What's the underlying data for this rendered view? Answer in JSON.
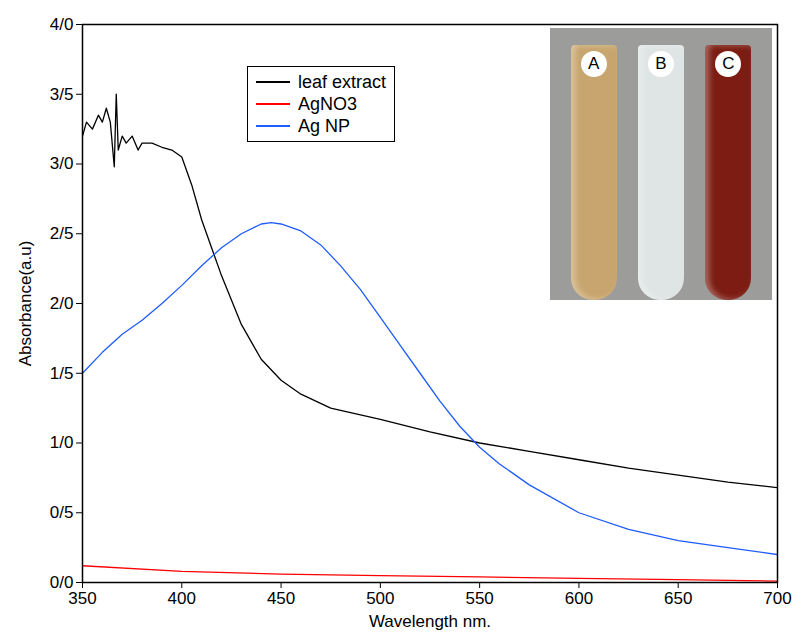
{
  "chart_data": {
    "type": "line",
    "x_label": "Wavelength nm.",
    "y_label": "Absorbance(a.u)",
    "xlim": [
      350,
      700
    ],
    "xticks": [
      350,
      400,
      450,
      500,
      550,
      600,
      650,
      700
    ],
    "ylim": [
      0,
      4
    ],
    "yticks": [
      {
        "value": 0,
        "label": "0/0"
      },
      {
        "value": 0.5,
        "label": "0/5"
      },
      {
        "value": 1,
        "label": "1/0"
      },
      {
        "value": 1.5,
        "label": "1/5"
      },
      {
        "value": 2,
        "label": "2/0"
      },
      {
        "value": 2.5,
        "label": "2/5"
      },
      {
        "value": 3,
        "label": "3/0"
      },
      {
        "value": 3.5,
        "label": "3/5"
      },
      {
        "value": 4,
        "label": "4/0"
      }
    ],
    "grid": false,
    "legend": "top",
    "series": [
      {
        "name": "leaf extract",
        "color": "#000000",
        "x": [
          350,
          352,
          355,
          358,
          360,
          362,
          364,
          366,
          367,
          368,
          370,
          372,
          375,
          378,
          380,
          385,
          390,
          395,
          400,
          405,
          410,
          415,
          420,
          430,
          440,
          450,
          460,
          475,
          500,
          525,
          550,
          575,
          600,
          625,
          650,
          675,
          700
        ],
        "values": [
          3.2,
          3.3,
          3.25,
          3.35,
          3.3,
          3.4,
          3.3,
          2.98,
          3.5,
          3.1,
          3.2,
          3.15,
          3.2,
          3.1,
          3.15,
          3.15,
          3.12,
          3.1,
          3.05,
          2.85,
          2.6,
          2.4,
          2.2,
          1.85,
          1.6,
          1.45,
          1.35,
          1.25,
          1.17,
          1.08,
          1.0,
          0.94,
          0.88,
          0.82,
          0.77,
          0.72,
          0.68
        ]
      },
      {
        "name": "AgNO3",
        "color": "#ff0000",
        "x": [
          350,
          400,
          450,
          500,
          550,
          600,
          650,
          700
        ],
        "values": [
          0.12,
          0.08,
          0.06,
          0.05,
          0.04,
          0.03,
          0.02,
          0.01
        ]
      },
      {
        "name": "Ag NP",
        "color": "#1f5cff",
        "x": [
          350,
          360,
          370,
          380,
          390,
          400,
          410,
          420,
          430,
          440,
          445,
          450,
          460,
          470,
          480,
          490,
          500,
          510,
          520,
          530,
          540,
          550,
          560,
          575,
          600,
          625,
          650,
          675,
          700
        ],
        "values": [
          1.5,
          1.65,
          1.78,
          1.88,
          2.0,
          2.13,
          2.27,
          2.4,
          2.5,
          2.57,
          2.58,
          2.57,
          2.52,
          2.42,
          2.27,
          2.1,
          1.9,
          1.7,
          1.5,
          1.3,
          1.12,
          0.97,
          0.85,
          0.7,
          0.5,
          0.38,
          0.3,
          0.25,
          0.2
        ]
      }
    ],
    "inset": {
      "labels": [
        "A",
        "B",
        "C"
      ],
      "colors": [
        "#c8a56e",
        "#dfe4e4",
        "#7c1c12"
      ]
    }
  }
}
